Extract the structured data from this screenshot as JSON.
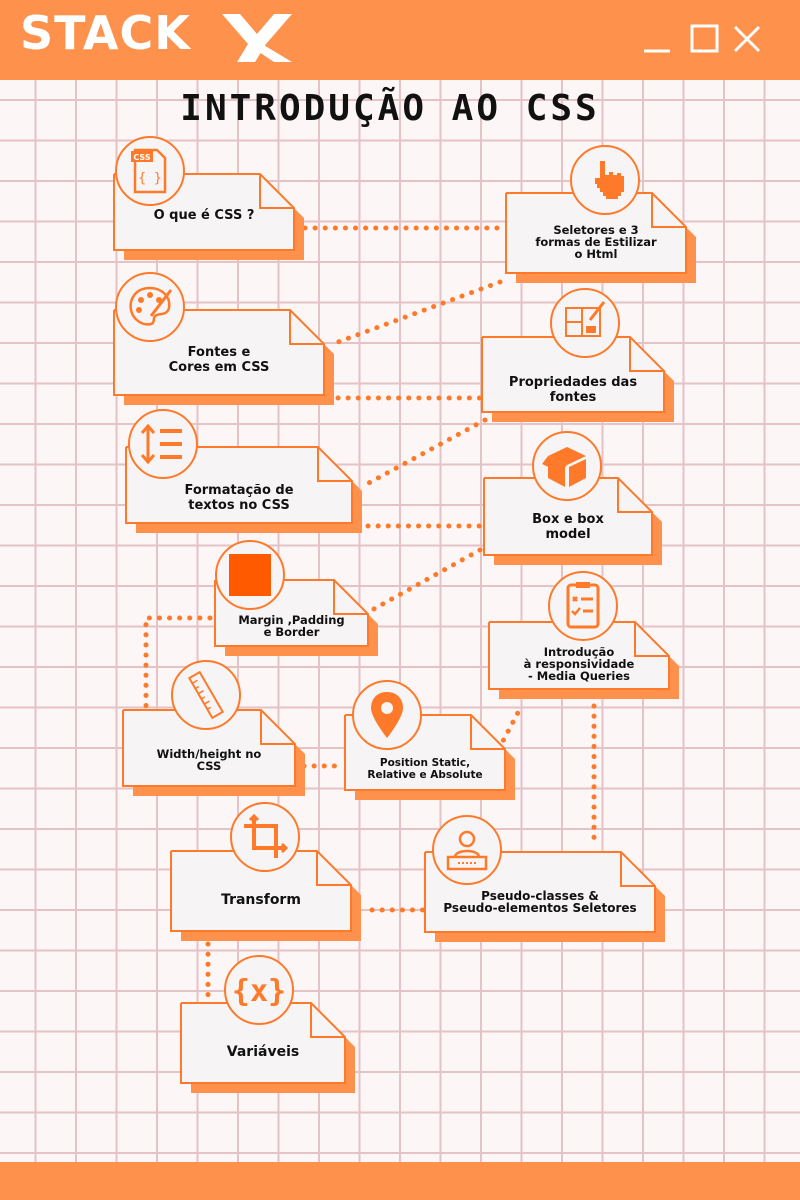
{
  "header": {
    "logo_text": "STACK",
    "brand_color": "#fe914b"
  },
  "title": "INTRODUÇÃO AO CSS",
  "nodes": [
    {
      "id": "o-que-e-css",
      "label": "O que é CSS ?",
      "icon": "css-file-icon"
    },
    {
      "id": "seletores",
      "label": "Seletores e 3\nformas de Estilizar\no Html",
      "icon": "pointer-hand-icon"
    },
    {
      "id": "fontes-cores",
      "label": "Fontes e\nCores em CSS",
      "icon": "palette-icon"
    },
    {
      "id": "propriedades-fontes",
      "label": "Propriedades das\nfontes",
      "icon": "blueprint-icon"
    },
    {
      "id": "formatacao-textos",
      "label": "Formatação de\ntextos no CSS",
      "icon": "line-height-icon"
    },
    {
      "id": "box-model",
      "label": "Box e box\nmodel",
      "icon": "box-icon"
    },
    {
      "id": "margin-padding",
      "label": "Margin ,Padding\ne Border",
      "icon": "square-icon"
    },
    {
      "id": "responsividade",
      "label": "Introdução\nà responsividade\n- Media Queries",
      "icon": "checklist-icon"
    },
    {
      "id": "width-height",
      "label": "Width/height no\nCSS",
      "icon": "ruler-icon"
    },
    {
      "id": "position",
      "label": "Position Static,\nRelative e Absolute",
      "icon": "location-pin-icon"
    },
    {
      "id": "transform",
      "label": "Transform",
      "icon": "crop-icon"
    },
    {
      "id": "pseudo",
      "label": "Pseudo-classes &\nPseudo-elementos Seletores",
      "icon": "user-badge-icon"
    },
    {
      "id": "variaveis",
      "label": "Variáveis",
      "icon": "variable-icon"
    }
  ],
  "colors": {
    "accent": "#fe7a2a",
    "paper": "#f6f4f4",
    "grid": "#e3c3c6"
  }
}
